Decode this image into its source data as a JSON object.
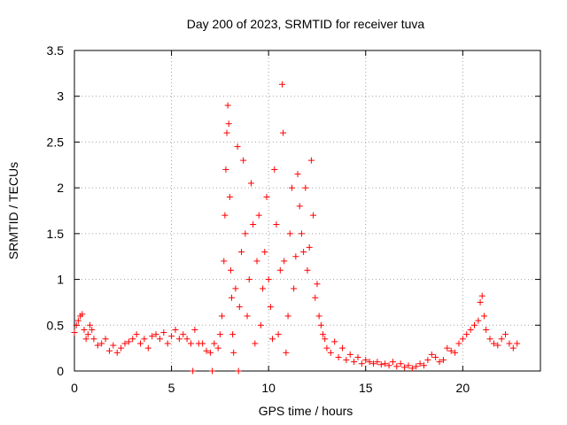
{
  "chart_data": {
    "type": "scatter",
    "title": "Day 200 of 2023, SRMTID for receiver tuva",
    "xlabel": "GPS time / hours",
    "ylabel": "SRMTID / TECUs",
    "xlim": [
      0,
      24
    ],
    "ylim": [
      0,
      3.5
    ],
    "x_ticks": [
      0,
      5,
      10,
      15,
      20
    ],
    "x_tick_labels": [
      "0",
      "5",
      "10",
      "15",
      "20"
    ],
    "y_ticks": [
      0,
      0.5,
      1,
      1.5,
      2,
      2.5,
      3,
      3.5
    ],
    "y_tick_labels": [
      "0",
      "0.5",
      "1",
      "1.5",
      "2",
      "2.5",
      "3",
      "3.5"
    ],
    "grid": true,
    "marker": "+",
    "marker_color": "#ff0000",
    "series": [
      {
        "name": "SRMTID",
        "x": [
          0.0,
          0.1,
          0.2,
          0.3,
          0.4,
          0.5,
          0.6,
          0.7,
          0.8,
          0.9,
          1.0,
          1.2,
          1.4,
          1.6,
          1.8,
          2.0,
          2.2,
          2.4,
          2.6,
          2.8,
          3.0,
          3.2,
          3.4,
          3.6,
          3.8,
          4.0,
          4.2,
          4.4,
          4.6,
          4.8,
          5.0,
          5.2,
          5.4,
          5.6,
          5.8,
          6.0,
          6.1,
          6.2,
          6.4,
          6.6,
          6.8,
          7.0,
          7.1,
          7.2,
          7.4,
          7.5,
          7.6,
          7.7,
          7.75,
          7.8,
          7.85,
          7.9,
          7.95,
          8.0,
          8.05,
          8.1,
          8.15,
          8.2,
          8.3,
          8.4,
          8.45,
          8.5,
          8.6,
          8.7,
          8.8,
          8.9,
          9.0,
          9.1,
          9.2,
          9.3,
          9.4,
          9.5,
          9.6,
          9.7,
          9.8,
          9.9,
          10.0,
          10.1,
          10.2,
          10.3,
          10.4,
          10.5,
          10.6,
          10.7,
          10.75,
          10.8,
          10.9,
          11.0,
          11.1,
          11.2,
          11.3,
          11.4,
          11.5,
          11.6,
          11.7,
          11.8,
          11.9,
          12.0,
          12.1,
          12.2,
          12.3,
          12.4,
          12.5,
          12.6,
          12.7,
          12.8,
          12.9,
          13.0,
          13.2,
          13.4,
          13.6,
          13.8,
          14.0,
          14.2,
          14.4,
          14.6,
          14.8,
          15.0,
          15.2,
          15.4,
          15.6,
          15.8,
          16.0,
          16.2,
          16.4,
          16.6,
          16.8,
          17.0,
          17.2,
          17.4,
          17.6,
          17.8,
          18.0,
          18.2,
          18.4,
          18.6,
          18.8,
          19.0,
          19.2,
          19.4,
          19.6,
          19.8,
          20.0,
          20.2,
          20.4,
          20.6,
          20.8,
          20.9,
          21.0,
          21.1,
          21.2,
          21.4,
          21.6,
          21.8,
          22.0,
          22.2,
          22.4,
          22.6,
          22.8
        ],
        "y": [
          0.42,
          0.5,
          0.55,
          0.6,
          0.62,
          0.45,
          0.35,
          0.4,
          0.5,
          0.45,
          0.35,
          0.28,
          0.3,
          0.35,
          0.22,
          0.28,
          0.2,
          0.25,
          0.3,
          0.32,
          0.35,
          0.4,
          0.3,
          0.35,
          0.25,
          0.38,
          0.4,
          0.35,
          0.42,
          0.3,
          0.38,
          0.45,
          0.35,
          0.4,
          0.35,
          0.3,
          0.0,
          0.45,
          0.3,
          0.3,
          0.22,
          0.2,
          0.0,
          0.3,
          0.25,
          0.4,
          0.6,
          1.2,
          1.7,
          2.2,
          2.6,
          2.9,
          2.7,
          1.9,
          1.1,
          0.8,
          0.4,
          0.2,
          0.9,
          2.45,
          0.0,
          0.7,
          1.3,
          2.3,
          1.5,
          0.6,
          1.0,
          2.05,
          1.6,
          0.3,
          1.2,
          1.7,
          0.5,
          0.9,
          1.3,
          1.9,
          1.0,
          0.7,
          0.35,
          2.2,
          1.6,
          0.4,
          1.1,
          3.13,
          2.6,
          1.2,
          0.2,
          0.6,
          1.5,
          2.0,
          0.9,
          1.25,
          2.15,
          1.8,
          1.5,
          1.3,
          2.0,
          1.1,
          1.35,
          2.3,
          1.7,
          0.8,
          0.95,
          0.6,
          0.5,
          0.4,
          0.35,
          0.25,
          0.2,
          0.32,
          0.15,
          0.25,
          0.12,
          0.18,
          0.1,
          0.15,
          0.08,
          0.12,
          0.1,
          0.08,
          0.1,
          0.07,
          0.08,
          0.06,
          0.1,
          0.05,
          0.08,
          0.04,
          0.06,
          0.03,
          0.05,
          0.08,
          0.06,
          0.12,
          0.18,
          0.15,
          0.1,
          0.12,
          0.25,
          0.22,
          0.2,
          0.3,
          0.35,
          0.4,
          0.45,
          0.5,
          0.55,
          0.75,
          0.82,
          0.6,
          0.45,
          0.35,
          0.3,
          0.28,
          0.35,
          0.4,
          0.3,
          0.25,
          0.3
        ]
      }
    ]
  }
}
